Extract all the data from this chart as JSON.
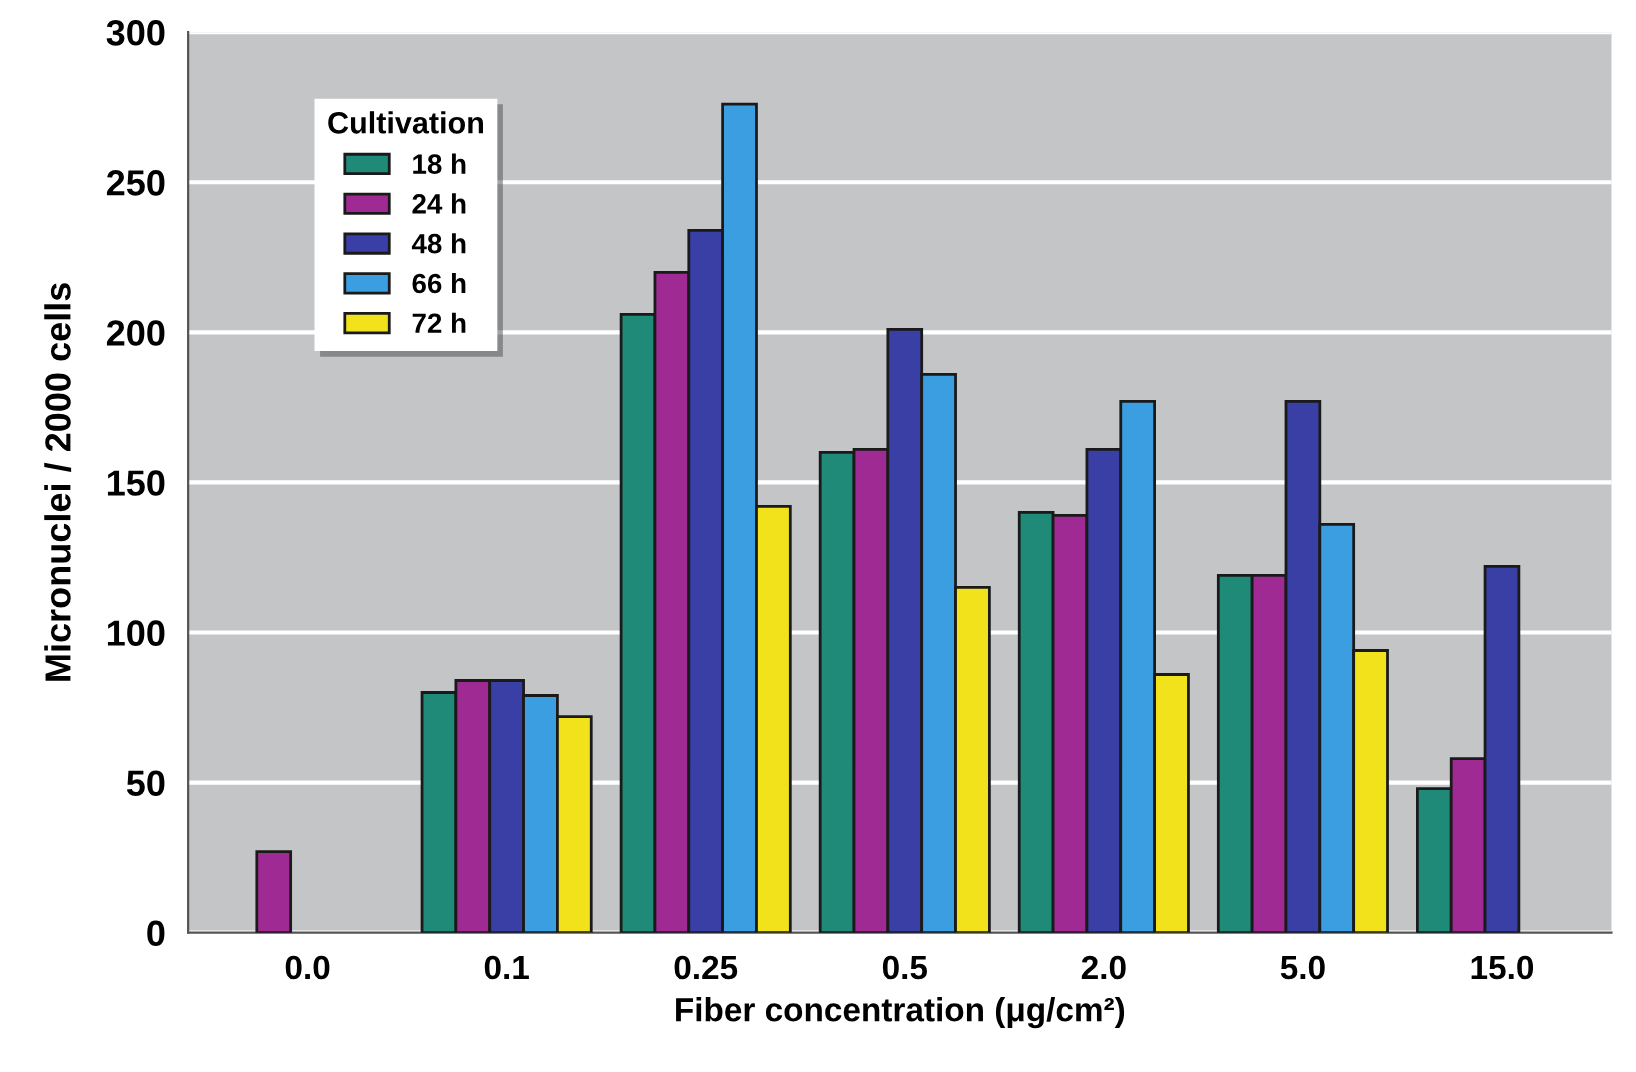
{
  "chart_data": {
    "type": "bar",
    "xlabel": "Fiber concentration (μg/cm²)",
    "ylabel": "Micronuclei / 2000 cells",
    "legend_title": "Cultivation",
    "categories": [
      "0.0",
      "0.1",
      "0.25",
      "0.5",
      "2.0",
      "5.0",
      "15.0"
    ],
    "series": [
      {
        "name": "18 h",
        "color": "#1f8a78",
        "values": [
          null,
          80,
          206,
          160,
          140,
          119,
          48
        ]
      },
      {
        "name": "24 h",
        "color": "#a02a94",
        "values": [
          27,
          84,
          220,
          161,
          139,
          119,
          58
        ]
      },
      {
        "name": "48 h",
        "color": "#3a3fa6",
        "values": [
          null,
          84,
          234,
          201,
          161,
          177,
          122
        ]
      },
      {
        "name": "66 h",
        "color": "#3a9ee0",
        "values": [
          null,
          79,
          276,
          186,
          177,
          136,
          null
        ]
      },
      {
        "name": "72 h",
        "color": "#f2e21c",
        "values": [
          null,
          72,
          142,
          115,
          86,
          94,
          null
        ]
      }
    ],
    "ylim": [
      0,
      300
    ],
    "yticks": [
      0,
      50,
      100,
      150,
      200,
      250,
      300
    ],
    "grid": "y",
    "legend": "top left"
  }
}
